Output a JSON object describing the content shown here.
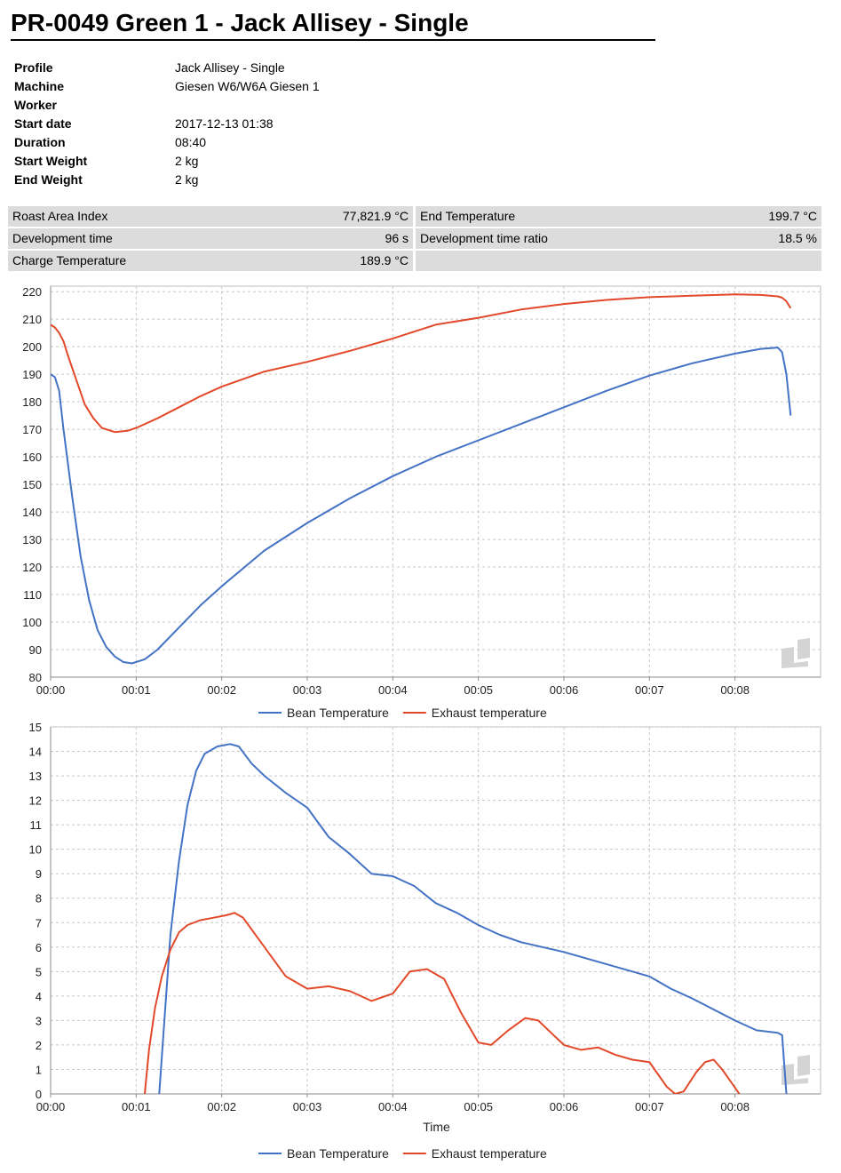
{
  "page_title": "PR-0049 Green 1 - Jack Allisey - Single",
  "info": [
    {
      "label": "Profile",
      "value": "Jack Allisey - Single"
    },
    {
      "label": "Machine",
      "value": "Giesen W6/W6A Giesen 1"
    },
    {
      "label": "Worker",
      "value": ""
    },
    {
      "label": "Start date",
      "value": "2017-12-13 01:38"
    },
    {
      "label": "Duration",
      "value": "08:40"
    },
    {
      "label": "Start Weight",
      "value": "2 kg"
    },
    {
      "label": "End Weight",
      "value": "2 kg"
    }
  ],
  "stats": [
    {
      "label": "Roast Area Index",
      "value": "77,821.9 °C"
    },
    {
      "label": "End Temperature",
      "value": "199.7 °C"
    },
    {
      "label": "Development time",
      "value": "96 s"
    },
    {
      "label": "Development time ratio",
      "value": "18.5 %"
    },
    {
      "label": "Charge Temperature",
      "value": "189.9 °C"
    }
  ],
  "colors": {
    "bean": "#4472c4",
    "exhaust": "#e2492a",
    "grid": "#c8c8c8"
  },
  "logo_icon": "roast-logo-icon",
  "chart_data": [
    {
      "type": "line",
      "title": "",
      "xlabel": "",
      "ylabel": "",
      "xlim": [
        0,
        9
      ],
      "ylim": [
        80,
        222
      ],
      "x_ticks": [
        0,
        1,
        2,
        3,
        4,
        5,
        6,
        7,
        8
      ],
      "x_tick_labels": [
        "00:00",
        "00:01",
        "00:02",
        "00:03",
        "00:04",
        "00:05",
        "00:06",
        "00:07",
        "00:08"
      ],
      "y_ticks": [
        80,
        90,
        100,
        110,
        120,
        130,
        140,
        150,
        160,
        170,
        180,
        190,
        200,
        210,
        220
      ],
      "grid": true,
      "legend": "bottom-center",
      "series": [
        {
          "name": "Bean Temperature",
          "color": "#4472c4",
          "x": [
            0,
            0.05,
            0.1,
            0.15,
            0.25,
            0.35,
            0.45,
            0.55,
            0.65,
            0.75,
            0.85,
            0.95,
            1.1,
            1.25,
            1.5,
            1.75,
            2.0,
            2.5,
            3.0,
            3.5,
            4.0,
            4.5,
            5.0,
            5.5,
            6.0,
            6.5,
            7.0,
            7.5,
            8.0,
            8.3,
            8.5,
            8.55,
            8.6,
            8.65
          ],
          "y": [
            190,
            189,
            184,
            170,
            146,
            124,
            108,
            97,
            91,
            87.5,
            85.5,
            85,
            86.5,
            90,
            98,
            106,
            113,
            126,
            136,
            145,
            153,
            160,
            166,
            172,
            178,
            184,
            189.5,
            194,
            197.5,
            199.2,
            199.7,
            198,
            190,
            175
          ]
        },
        {
          "name": "Exhaust temperature",
          "color": "#e2492a",
          "x": [
            0,
            0.05,
            0.1,
            0.15,
            0.2,
            0.3,
            0.4,
            0.5,
            0.6,
            0.75,
            0.9,
            1.0,
            1.25,
            1.5,
            1.75,
            2.0,
            2.5,
            3.0,
            3.5,
            4.0,
            4.5,
            5.0,
            5.5,
            6.0,
            6.5,
            7.0,
            7.5,
            8.0,
            8.3,
            8.5,
            8.55,
            8.6,
            8.65
          ],
          "y": [
            208,
            207,
            205,
            202,
            197,
            188,
            179,
            174,
            170.5,
            169,
            169.5,
            170.5,
            174,
            178,
            182,
            185.5,
            191,
            194.5,
            198.5,
            203,
            208,
            210.5,
            213.5,
            215.5,
            217,
            218,
            218.5,
            219,
            218.8,
            218.3,
            217.8,
            216.5,
            214
          ]
        }
      ]
    },
    {
      "type": "line",
      "title": "",
      "xlabel": "Time",
      "ylabel": "",
      "xlim": [
        0,
        9
      ],
      "ylim": [
        0,
        15
      ],
      "x_ticks": [
        0,
        1,
        2,
        3,
        4,
        5,
        6,
        7,
        8
      ],
      "x_tick_labels": [
        "00:00",
        "00:01",
        "00:02",
        "00:03",
        "00:04",
        "00:05",
        "00:06",
        "00:07",
        "00:08"
      ],
      "y_ticks": [
        0,
        1,
        2,
        3,
        4,
        5,
        6,
        7,
        8,
        9,
        10,
        11,
        12,
        13,
        14,
        15
      ],
      "grid": true,
      "legend": "bottom-center",
      "series": [
        {
          "name": "Bean Temperature",
          "color": "#4472c4",
          "x": [
            1.27,
            1.33,
            1.4,
            1.5,
            1.6,
            1.7,
            1.8,
            1.95,
            2.1,
            2.2,
            2.35,
            2.5,
            2.75,
            3.0,
            3.25,
            3.5,
            3.75,
            4.0,
            4.25,
            4.5,
            4.75,
            5.0,
            5.25,
            5.5,
            6.0,
            6.5,
            7.0,
            7.25,
            7.5,
            8.0,
            8.25,
            8.5,
            8.55,
            8.6
          ],
          "y": [
            0,
            3,
            6.5,
            9.5,
            11.8,
            13.2,
            13.9,
            14.2,
            14.3,
            14.2,
            13.5,
            13,
            12.3,
            11.7,
            10.5,
            9.8,
            9,
            8.9,
            8.5,
            7.8,
            7.4,
            6.9,
            6.5,
            6.2,
            5.8,
            5.3,
            4.8,
            4.3,
            3.9,
            3,
            2.6,
            2.5,
            2.4,
            0
          ]
        },
        {
          "name": "Exhaust temperature",
          "color": "#e2492a",
          "x": [
            1.1,
            1.15,
            1.22,
            1.3,
            1.4,
            1.5,
            1.6,
            1.75,
            1.9,
            2.05,
            2.15,
            2.25,
            2.5,
            2.75,
            3.0,
            3.25,
            3.5,
            3.75,
            4.0,
            4.2,
            4.4,
            4.6,
            4.8,
            5.0,
            5.15,
            5.35,
            5.55,
            5.7,
            5.85,
            6.0,
            6.2,
            6.4,
            6.6,
            6.8,
            7.0,
            7.1,
            7.2,
            7.3,
            7.4,
            7.55,
            7.65,
            7.75,
            7.85,
            7.95,
            8.05
          ],
          "y": [
            0,
            1.8,
            3.5,
            4.8,
            5.9,
            6.6,
            6.9,
            7.1,
            7.2,
            7.3,
            7.4,
            7.2,
            6,
            4.8,
            4.3,
            4.4,
            4.2,
            3.8,
            4.1,
            5,
            5.1,
            4.7,
            3.3,
            2.1,
            2,
            2.6,
            3.1,
            3,
            2.5,
            2,
            1.8,
            1.9,
            1.6,
            1.4,
            1.3,
            0.8,
            0.3,
            0,
            0.1,
            0.9,
            1.3,
            1.4,
            1,
            0.5,
            0
          ]
        }
      ]
    }
  ]
}
